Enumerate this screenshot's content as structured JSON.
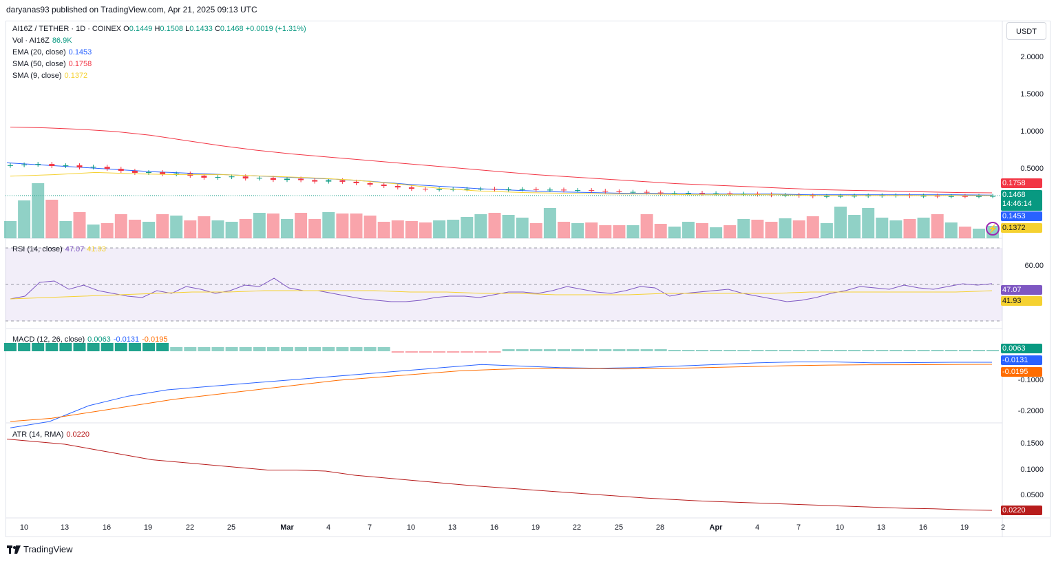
{
  "header": "daryanas93 published on TradingView.com, Apr 21, 2025 09:13 UTC",
  "symbol": {
    "name": "AI16Z / TETHER · 1D · COINEX",
    "o_label": "O",
    "o": "0.1449",
    "h_label": "H",
    "h": "0.1508",
    "l_label": "L",
    "l": "0.1433",
    "c_label": "C",
    "c": "0.1468",
    "change": "+0.0019 (+1.31%)"
  },
  "indicators": {
    "vol": {
      "label": "Vol · AI16Z",
      "value": "86.9K"
    },
    "ema": {
      "label": "EMA (20, close)",
      "value": "0.1453"
    },
    "sma50": {
      "label": "SMA (50, close)",
      "value": "0.1758"
    },
    "sma9": {
      "label": "SMA (9, close)",
      "value": "0.1372"
    },
    "rsi": {
      "label": "RSI (14, close)",
      "value": "47.07",
      "value2": "41.93"
    },
    "macd": {
      "label": "MACD (12, 26, close)",
      "value": "0.0063",
      "value2": "-0.0131",
      "value3": "-0.0195"
    },
    "atr": {
      "label": "ATR (14, RMA)",
      "value": "0.0220"
    }
  },
  "currency": "USDT",
  "price_axis": [
    "2.0000",
    "1.5000",
    "1.0000",
    "0.5000"
  ],
  "rsi_axis": [
    "60.00"
  ],
  "macd_axis": [
    "-0.1000",
    "-0.2000"
  ],
  "atr_axis": [
    "0.1500",
    "0.1000",
    "0.0500"
  ],
  "tags": {
    "sma50": "0.1758",
    "price": "0.1468",
    "countdown": "14:46:14",
    "ema": "0.1453",
    "sma9": "0.1372",
    "rsi": "47.07",
    "rsi_ma": "41.93",
    "macd_hist": "0.0063",
    "macd": "-0.0131",
    "macd_signal": "-0.0195",
    "atr": "0.0220"
  },
  "x_labels": [
    "10",
    "13",
    "16",
    "19",
    "22",
    "25",
    "Mar",
    "4",
    "7",
    "10",
    "13",
    "16",
    "19",
    "22",
    "25",
    "28",
    "Apr",
    "4",
    "7",
    "10",
    "13",
    "16",
    "19",
    "2"
  ],
  "brand": "TradingView",
  "colors": {
    "up": "#089981",
    "down": "#f23645",
    "ema": "#2962ff",
    "sma50": "#f23645",
    "sma9": "#f5d131",
    "rsi": "#7e57c2",
    "macd": "#2962ff",
    "signal": "#ff6d00",
    "atr": "#b71c1c"
  },
  "chart_data": {
    "type": "line",
    "title": "AI16Z / TETHER · 1D · COINEX",
    "series": [
      {
        "name": "SMA (50, close)",
        "values": [
          1.06,
          1.05,
          1.03,
          1.0,
          0.95,
          0.88,
          0.81,
          0.75,
          0.7,
          0.66,
          0.62,
          0.58,
          0.54,
          0.5,
          0.46,
          0.42,
          0.39,
          0.36,
          0.33,
          0.3,
          0.28,
          0.26,
          0.24,
          0.22,
          0.21,
          0.2,
          0.19,
          0.18,
          0.1758
        ]
      },
      {
        "name": "EMA (20, close)",
        "values": [
          0.58,
          0.55,
          0.52,
          0.49,
          0.46,
          0.44,
          0.42,
          0.4,
          0.38,
          0.36,
          0.33,
          0.29,
          0.26,
          0.23,
          0.21,
          0.19,
          0.18,
          0.17,
          0.17,
          0.16,
          0.16,
          0.16,
          0.15,
          0.15,
          0.15,
          0.15,
          0.15,
          0.1453
        ]
      },
      {
        "name": "RSI (14, close)",
        "values": [
          47.07
        ]
      },
      {
        "name": "MACD (12, 26, close)",
        "values": [
          0.0063,
          -0.0131,
          -0.0195
        ]
      },
      {
        "name": "ATR (14, RMA)",
        "values": [
          0.022
        ]
      }
    ]
  }
}
